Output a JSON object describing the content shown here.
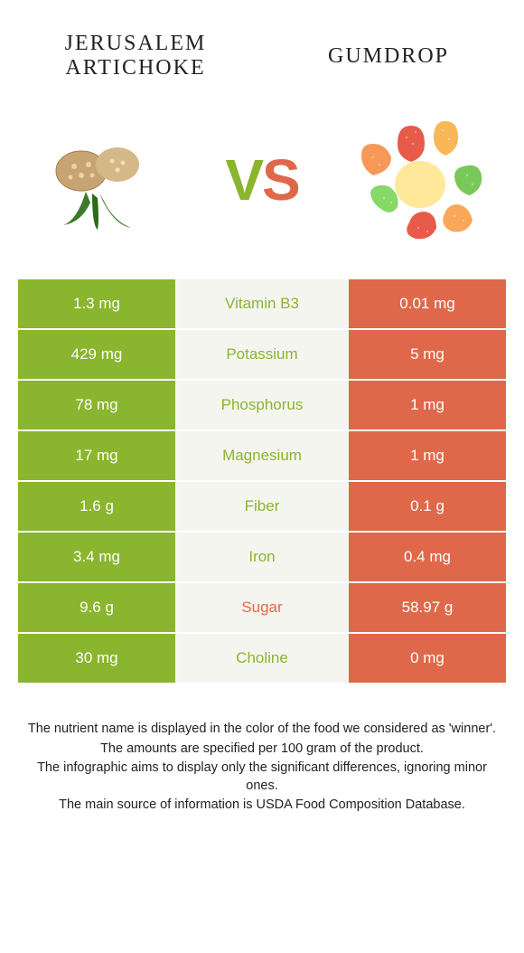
{
  "header": {
    "left_title": "Jerusalem artichoke",
    "right_title": "Gumdrop",
    "vs_v": "V",
    "vs_s": "S"
  },
  "colors": {
    "left_bg": "#8ab52e",
    "right_bg": "#e0684a",
    "mid_bg": "#f5f5f0",
    "winner_left": "#8ab52e",
    "winner_right": "#e0684a",
    "text_white": "#ffffff"
  },
  "rows": [
    {
      "left": "1.3 mg",
      "label": "Vitamin B3",
      "right": "0.01 mg",
      "winner": "left"
    },
    {
      "left": "429 mg",
      "label": "Potassium",
      "right": "5 mg",
      "winner": "left"
    },
    {
      "left": "78 mg",
      "label": "Phosphorus",
      "right": "1 mg",
      "winner": "left"
    },
    {
      "left": "17 mg",
      "label": "Magnesium",
      "right": "1 mg",
      "winner": "left"
    },
    {
      "left": "1.6 g",
      "label": "Fiber",
      "right": "0.1 g",
      "winner": "left"
    },
    {
      "left": "3.4 mg",
      "label": "Iron",
      "right": "0.4 mg",
      "winner": "left"
    },
    {
      "left": "9.6 g",
      "label": "Sugar",
      "right": "58.97 g",
      "winner": "right"
    },
    {
      "left": "30 mg",
      "label": "Choline",
      "right": "0 mg",
      "winner": "left"
    }
  ],
  "footer": {
    "line1": "The nutrient name is displayed in the color of the food we considered as 'winner'.",
    "line2": "The amounts are specified per 100 gram of the product.",
    "line3": "The infographic aims to display only the significant differences, ignoring minor ones.",
    "line4": "The main source of information is USDA Food Composition Database."
  }
}
